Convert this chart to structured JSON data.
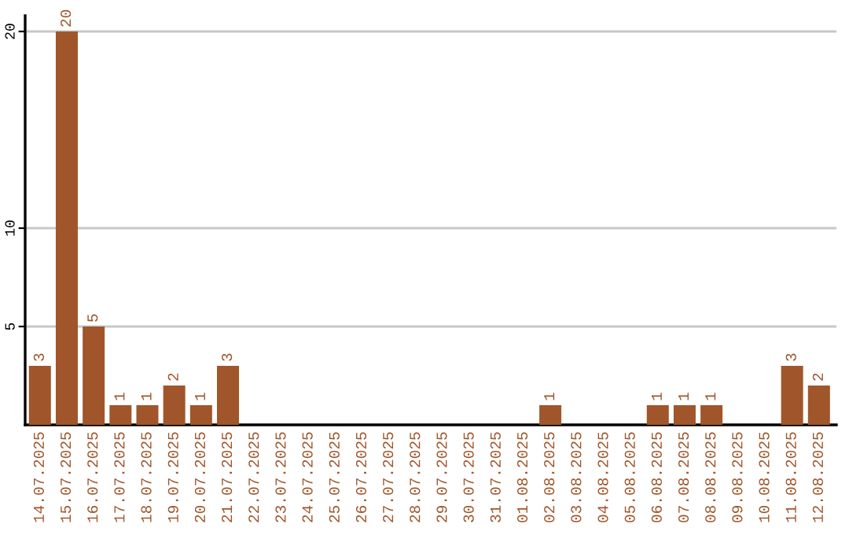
{
  "chart_data": {
    "type": "bar",
    "categories": [
      "14.07.2025",
      "15.07.2025",
      "16.07.2025",
      "17.07.2025",
      "18.07.2025",
      "19.07.2025",
      "20.07.2025",
      "21.07.2025",
      "22.07.2025",
      "23.07.2025",
      "24.07.2025",
      "25.07.2025",
      "26.07.2025",
      "27.07.2025",
      "28.07.2025",
      "29.07.2025",
      "30.07.2025",
      "31.07.2025",
      "01.08.2025",
      "02.08.2025",
      "03.08.2025",
      "04.08.2025",
      "05.08.2025",
      "06.08.2025",
      "07.08.2025",
      "08.08.2025",
      "09.08.2025",
      "10.08.2025",
      "11.08.2025",
      "12.08.2025"
    ],
    "values": [
      3,
      20,
      5,
      1,
      1,
      2,
      1,
      3,
      0,
      0,
      0,
      0,
      0,
      0,
      0,
      0,
      0,
      0,
      0,
      1,
      0,
      0,
      0,
      1,
      1,
      1,
      0,
      0,
      3,
      2
    ],
    "value_labels": [
      "3",
      "20",
      "5",
      "1",
      "1",
      "2",
      "1",
      "3",
      null,
      null,
      null,
      null,
      null,
      null,
      null,
      null,
      null,
      null,
      null,
      "1",
      null,
      null,
      null,
      "1",
      "1",
      "1",
      null,
      null,
      "3",
      "2"
    ],
    "color": "#a0562a",
    "ylim": [
      0,
      20.8
    ],
    "yticks": [
      5,
      10,
      20
    ],
    "grid": "y"
  }
}
